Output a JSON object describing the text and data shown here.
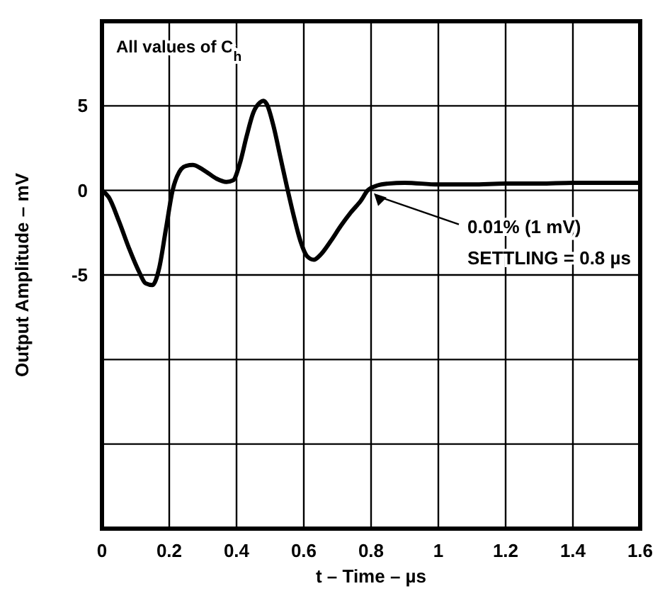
{
  "chart_data": {
    "type": "line",
    "xlabel": "t – Time – µs",
    "ylabel": "Output Amplitude – mV",
    "x": [
      0,
      0.02,
      0.05,
      0.08,
      0.11,
      0.13,
      0.15,
      0.17,
      0.19,
      0.21,
      0.23,
      0.25,
      0.27,
      0.29,
      0.31,
      0.34,
      0.37,
      0.39,
      0.41,
      0.43,
      0.45,
      0.47,
      0.48,
      0.49,
      0.51,
      0.53,
      0.55,
      0.57,
      0.59,
      0.61,
      0.63,
      0.65,
      0.68,
      0.71,
      0.74,
      0.77,
      0.79,
      0.82,
      0.85,
      0.9,
      1.0,
      1.1,
      1.2,
      1.3,
      1.4,
      1.5,
      1.6
    ],
    "series": [
      {
        "color": "#000000",
        "values": [
          0,
          -0.4,
          -1.8,
          -3.4,
          -4.8,
          -5.5,
          -5.6,
          -4.6,
          -2.3,
          0,
          1.1,
          1.45,
          1.5,
          1.35,
          1.1,
          0.7,
          0.5,
          0.6,
          1.6,
          3.2,
          4.6,
          5.2,
          5.3,
          5.1,
          3.8,
          2,
          0.2,
          -1.5,
          -3,
          -3.9,
          -4.1,
          -3.8,
          -3,
          -2.1,
          -1.3,
          -0.6,
          0,
          0.3,
          0.4,
          0.45,
          0.35,
          0.35,
          0.4,
          0.4,
          0.45,
          0.45,
          0.45
        ]
      }
    ],
    "xlim": [
      0,
      1.6
    ],
    "xticks": [
      0,
      0.2,
      0.4,
      0.6,
      0.8,
      1,
      1.2,
      1.4,
      1.6
    ],
    "ylim": [
      -20,
      10
    ],
    "yticks": [
      {
        "value": -20,
        "label": null
      },
      {
        "value": -15,
        "label": null
      },
      {
        "value": -10,
        "label": null
      },
      -5,
      0,
      5,
      {
        "value": 10,
        "label": null
      }
    ],
    "grid": true,
    "line_style": "solid",
    "marker": "none",
    "annotations": [
      "All values of C$_{h}$",
      {
        "text": "0.01% (1 mV)",
        "x": 0.8,
        "y": 0
      },
      "SETTLING = 0.8 µs"
    ]
  }
}
